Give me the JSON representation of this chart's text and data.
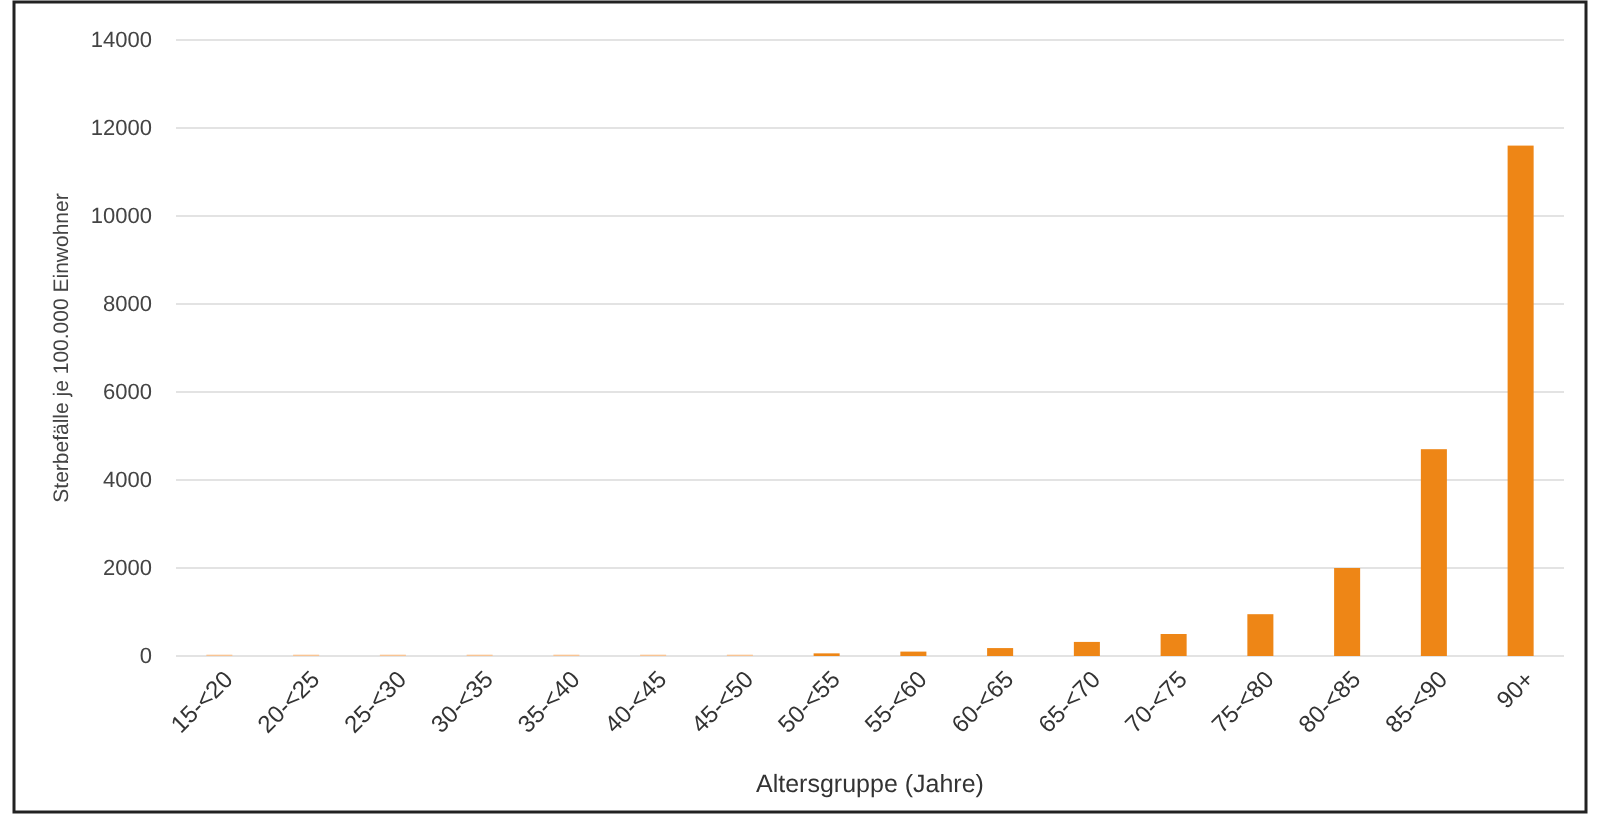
{
  "chart_data": {
    "type": "bar",
    "xlabel": "Altersgruppe  (Jahre)",
    "ylabel": "Sterbefälle je 100.000 Einwohner",
    "categories": [
      "15-<20",
      "20-<25",
      "25-<30",
      "30-<35",
      "35-<40",
      "40-<45",
      "45-<50",
      "50-<55",
      "55-<60",
      "60-<65",
      "65-<70",
      "70-<75",
      "75-<80",
      "80-<85",
      "85-<90",
      "90+"
    ],
    "values": [
      30,
      30,
      30,
      30,
      30,
      30,
      30,
      60,
      100,
      180,
      320,
      500,
      950,
      2000,
      4700,
      11600
    ],
    "colors": [
      "#f9c493",
      "#f9c493",
      "#f9c493",
      "#f9c493",
      "#f9c493",
      "#f9c493",
      "#f9c493",
      "#ee8616",
      "#ee8616",
      "#ee8616",
      "#ee8616",
      "#ee8616",
      "#ee8616",
      "#ee8616",
      "#ee8616",
      "#ee8616"
    ],
    "ylim": [
      0,
      14000
    ],
    "yticks": [
      0,
      2000,
      4000,
      6000,
      8000,
      10000,
      12000,
      14000
    ],
    "grid": "y"
  }
}
